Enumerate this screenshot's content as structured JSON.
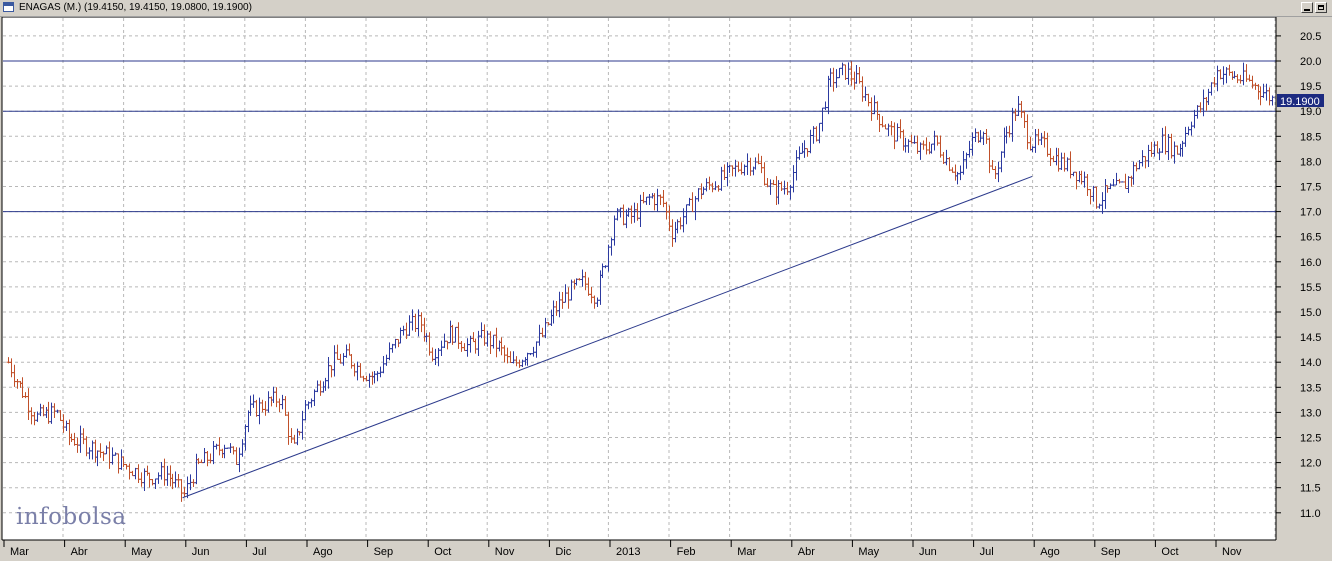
{
  "window": {
    "title": "ENAGAS (M.) (19.4150, 19.4150, 19.0800, 19.1900)"
  },
  "watermark": "infobolsa",
  "colors": {
    "up": "#2c3aa0",
    "down": "#c0502a",
    "line": "#2c3a8c",
    "grid": "#b8b8b8",
    "last_price_bg": "#1c2a80"
  },
  "chart_data": {
    "type": "ohlc",
    "title": "ENAGAS (M.)",
    "last_price_label": "19.1900",
    "y_axis": {
      "min": 10.5,
      "max": 20.8,
      "ticks": [
        "20.5",
        "20.0",
        "19.5",
        "19.0",
        "18.5",
        "18.0",
        "17.5",
        "17.0",
        "16.5",
        "16.0",
        "15.5",
        "15.0",
        "14.5",
        "14.0",
        "13.5",
        "13.0",
        "12.5",
        "12.0",
        "11.5",
        "11.0"
      ],
      "side": "right"
    },
    "x_axis": {
      "labels": [
        "Mar",
        "Abr",
        "May",
        "Jun",
        "Jul",
        "Ago",
        "Sep",
        "Oct",
        "Nov",
        "Dic",
        "2013",
        "Feb",
        "Mar",
        "Abr",
        "May",
        "Jun",
        "Jul",
        "Ago",
        "Sep",
        "Oct",
        "Nov"
      ],
      "label_month_index": [
        0,
        1,
        2,
        3,
        4,
        5,
        6,
        7,
        8,
        9,
        10,
        11,
        12,
        13,
        14,
        15,
        16,
        17,
        18,
        19,
        20
      ]
    },
    "grid": true,
    "horizontal_lines": [
      20.0,
      19.0,
      17.0
    ],
    "trendline": {
      "from": {
        "month": 2.88,
        "price": 11.3
      },
      "to": {
        "month": 16.9,
        "price": 17.7
      }
    },
    "price_path": [
      {
        "m": 0.0,
        "p": 14.0
      },
      {
        "m": 0.2,
        "p": 13.5
      },
      {
        "m": 0.45,
        "p": 12.9
      },
      {
        "m": 0.8,
        "p": 13.0
      },
      {
        "m": 1.0,
        "p": 12.5
      },
      {
        "m": 1.4,
        "p": 12.3
      },
      {
        "m": 1.7,
        "p": 12.1
      },
      {
        "m": 2.0,
        "p": 11.9
      },
      {
        "m": 2.3,
        "p": 11.7
      },
      {
        "m": 2.6,
        "p": 11.8
      },
      {
        "m": 2.9,
        "p": 11.35
      },
      {
        "m": 3.1,
        "p": 11.9
      },
      {
        "m": 3.4,
        "p": 12.2
      },
      {
        "m": 3.6,
        "p": 12.4
      },
      {
        "m": 3.75,
        "p": 12.0
      },
      {
        "m": 3.95,
        "p": 13.0
      },
      {
        "m": 4.3,
        "p": 13.2
      },
      {
        "m": 4.5,
        "p": 13.3
      },
      {
        "m": 4.7,
        "p": 12.2
      },
      {
        "m": 4.9,
        "p": 13.1
      },
      {
        "m": 5.1,
        "p": 13.5
      },
      {
        "m": 5.35,
        "p": 14.0
      },
      {
        "m": 5.6,
        "p": 14.1
      },
      {
        "m": 5.85,
        "p": 13.8
      },
      {
        "m": 6.05,
        "p": 13.7
      },
      {
        "m": 6.3,
        "p": 14.2
      },
      {
        "m": 6.55,
        "p": 14.7
      },
      {
        "m": 6.8,
        "p": 14.8
      },
      {
        "m": 7.0,
        "p": 14.2
      },
      {
        "m": 7.3,
        "p": 14.6
      },
      {
        "m": 7.6,
        "p": 14.3
      },
      {
        "m": 7.85,
        "p": 14.5
      },
      {
        "m": 8.1,
        "p": 14.3
      },
      {
        "m": 8.3,
        "p": 13.9
      },
      {
        "m": 8.55,
        "p": 14.2
      },
      {
        "m": 8.8,
        "p": 14.5
      },
      {
        "m": 9.0,
        "p": 15.0
      },
      {
        "m": 9.25,
        "p": 15.4
      },
      {
        "m": 9.5,
        "p": 15.6
      },
      {
        "m": 9.7,
        "p": 15.3
      },
      {
        "m": 9.85,
        "p": 16.0
      },
      {
        "m": 10.0,
        "p": 16.9
      },
      {
        "m": 10.3,
        "p": 16.9
      },
      {
        "m": 10.6,
        "p": 17.3
      },
      {
        "m": 10.8,
        "p": 17.2
      },
      {
        "m": 10.95,
        "p": 16.6
      },
      {
        "m": 11.2,
        "p": 17.0
      },
      {
        "m": 11.4,
        "p": 17.4
      },
      {
        "m": 11.7,
        "p": 17.6
      },
      {
        "m": 11.95,
        "p": 17.8
      },
      {
        "m": 12.2,
        "p": 18.0
      },
      {
        "m": 12.4,
        "p": 17.9
      },
      {
        "m": 12.6,
        "p": 17.4
      },
      {
        "m": 12.85,
        "p": 17.5
      },
      {
        "m": 13.1,
        "p": 18.2
      },
      {
        "m": 13.35,
        "p": 18.6
      },
      {
        "m": 13.55,
        "p": 19.6
      },
      {
        "m": 13.8,
        "p": 19.8
      },
      {
        "m": 14.0,
        "p": 19.6
      },
      {
        "m": 14.3,
        "p": 19.0
      },
      {
        "m": 14.55,
        "p": 18.6
      },
      {
        "m": 14.8,
        "p": 18.4
      },
      {
        "m": 15.05,
        "p": 18.2
      },
      {
        "m": 15.3,
        "p": 18.4
      },
      {
        "m": 15.5,
        "p": 18.0
      },
      {
        "m": 15.7,
        "p": 17.7
      },
      {
        "m": 15.9,
        "p": 18.4
      },
      {
        "m": 16.1,
        "p": 18.7
      },
      {
        "m": 16.25,
        "p": 17.6
      },
      {
        "m": 16.45,
        "p": 18.5
      },
      {
        "m": 16.65,
        "p": 19.1
      },
      {
        "m": 16.85,
        "p": 18.4
      },
      {
        "m": 17.1,
        "p": 18.3
      },
      {
        "m": 17.35,
        "p": 18.0
      },
      {
        "m": 17.6,
        "p": 17.8
      },
      {
        "m": 17.8,
        "p": 17.6
      },
      {
        "m": 17.95,
        "p": 17.2
      },
      {
        "m": 18.15,
        "p": 17.4
      },
      {
        "m": 18.4,
        "p": 17.5
      },
      {
        "m": 18.6,
        "p": 17.9
      },
      {
        "m": 18.85,
        "p": 18.2
      },
      {
        "m": 19.05,
        "p": 18.4
      },
      {
        "m": 19.3,
        "p": 18.2
      },
      {
        "m": 19.5,
        "p": 18.8
      },
      {
        "m": 19.75,
        "p": 19.2
      },
      {
        "m": 19.95,
        "p": 19.8
      },
      {
        "m": 20.2,
        "p": 19.7
      },
      {
        "m": 20.45,
        "p": 19.6
      },
      {
        "m": 20.7,
        "p": 19.4
      },
      {
        "m": 20.9,
        "p": 19.2
      }
    ]
  }
}
